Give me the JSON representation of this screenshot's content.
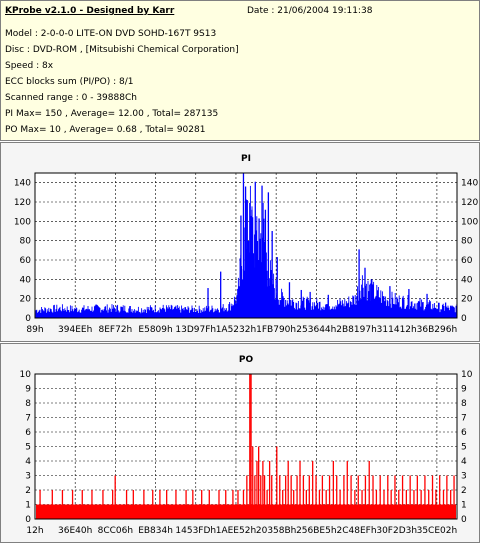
{
  "header": {
    "app_title": "KProbe v2.1.0 - Designed by Karr",
    "date": "Date : 21/06/2004 19:11:38",
    "lines": [
      "Model : 2-0-0-0 LITE-ON DVD SOHD-167T    9S13",
      "Disc : DVD-ROM ,  [Mitsubishi Chemical Corporation]",
      "Speed : 8x",
      "ECC blocks sum (PI/PO) : 8/1",
      "Scanned range : 0 - 39888Ch",
      "PI Max= 150 , Average= 12.00 , Total= 287135",
      "PO Max= 10 , Average= 0.68 , Total= 90281"
    ]
  },
  "chart_data": [
    {
      "type": "bar",
      "title": "PI",
      "color": "#0000ff",
      "ylim": [
        0,
        150
      ],
      "yticks": [
        0,
        20,
        40,
        60,
        80,
        100,
        120,
        140
      ],
      "xtick_labels": [
        "89h",
        "394EEh",
        "8EF72h",
        "E5809h",
        "13D97Fh",
        "1A5232h",
        "1FB790h",
        "253644h",
        "2B8197h",
        "311412h",
        "36B296h"
      ],
      "x_range": [
        0,
        100
      ],
      "grid": true,
      "profile": [
        [
          0,
          8
        ],
        [
          3,
          9
        ],
        [
          6,
          10
        ],
        [
          10,
          9
        ],
        [
          15,
          10
        ],
        [
          20,
          10
        ],
        [
          25,
          9
        ],
        [
          30,
          10
        ],
        [
          35,
          9
        ],
        [
          40,
          9
        ],
        [
          44,
          10
        ],
        [
          46,
          12
        ],
        [
          48,
          22
        ],
        [
          49,
          60
        ],
        [
          50,
          85
        ],
        [
          51,
          100
        ],
        [
          52,
          80
        ],
        [
          53,
          70
        ],
        [
          54,
          95
        ],
        [
          55,
          55
        ],
        [
          56,
          40
        ],
        [
          57,
          30
        ],
        [
          58,
          22
        ],
        [
          60,
          18
        ],
        [
          62,
          16
        ],
        [
          65,
          15
        ],
        [
          68,
          14
        ],
        [
          71,
          14
        ],
        [
          74,
          16
        ],
        [
          76,
          20
        ],
        [
          77,
          35
        ],
        [
          78,
          38
        ],
        [
          79,
          30
        ],
        [
          81,
          25
        ],
        [
          83,
          20
        ],
        [
          86,
          18
        ],
        [
          89,
          16
        ],
        [
          92,
          14
        ],
        [
          95,
          12
        ],
        [
          97,
          10
        ],
        [
          100,
          10
        ]
      ],
      "spikes": [
        [
          41,
          31
        ],
        [
          44,
          48
        ],
        [
          48.8,
          106
        ],
        [
          49.4,
          150
        ],
        [
          49.9,
          136
        ],
        [
          50.3,
          122
        ],
        [
          50.9,
          119
        ],
        [
          51.4,
          112
        ],
        [
          52.2,
          141
        ],
        [
          53.1,
          103
        ],
        [
          53.8,
          137
        ],
        [
          54.6,
          112
        ],
        [
          55.3,
          130
        ],
        [
          56.2,
          90
        ],
        [
          57.4,
          63
        ],
        [
          60.3,
          37
        ],
        [
          63.1,
          29
        ],
        [
          65.2,
          27
        ],
        [
          69.5,
          24
        ],
        [
          76.8,
          71
        ],
        [
          78.2,
          52
        ],
        [
          79.7,
          40
        ],
        [
          84.1,
          33
        ],
        [
          88.6,
          30
        ],
        [
          92.9,
          25
        ],
        [
          97.3,
          16
        ]
      ]
    },
    {
      "type": "bar",
      "title": "PO",
      "color": "#ff0000",
      "ylim": [
        0,
        10
      ],
      "yticks": [
        0,
        1,
        2,
        3,
        4,
        5,
        6,
        7,
        8,
        9,
        10
      ],
      "xtick_labels": [
        "12h",
        "36E40h",
        "8CC06h",
        "EB834h",
        "1453FDh",
        "1AEE52h",
        "20358Bh",
        "256BE5h",
        "2C48EFh",
        "30F2D3h",
        "35CE02h"
      ],
      "x_range": [
        0,
        100
      ],
      "grid": true,
      "baseline": 1,
      "spikes": [
        [
          1.2,
          2
        ],
        [
          2.6,
          1
        ],
        [
          4.1,
          2
        ],
        [
          6.5,
          2
        ],
        [
          8.9,
          2
        ],
        [
          11.2,
          2
        ],
        [
          13.5,
          2
        ],
        [
          16.1,
          2
        ],
        [
          18.4,
          2
        ],
        [
          19.0,
          3
        ],
        [
          21.7,
          2
        ],
        [
          23.3,
          2
        ],
        [
          25.8,
          2
        ],
        [
          27.9,
          2
        ],
        [
          29.6,
          2
        ],
        [
          31.2,
          2
        ],
        [
          33.4,
          2
        ],
        [
          35.8,
          2
        ],
        [
          37.4,
          2
        ],
        [
          39.5,
          2
        ],
        [
          41.3,
          2
        ],
        [
          43.6,
          2
        ],
        [
          45.2,
          2
        ],
        [
          46.9,
          2
        ],
        [
          48.1,
          2
        ],
        [
          49.4,
          2
        ],
        [
          50.2,
          3
        ],
        [
          50.9,
          10
        ],
        [
          51.2,
          10
        ],
        [
          51.6,
          5
        ],
        [
          52.1,
          3
        ],
        [
          52.6,
          4
        ],
        [
          53.0,
          5
        ],
        [
          53.5,
          3
        ],
        [
          54.0,
          4
        ],
        [
          54.4,
          3
        ],
        [
          55.0,
          2
        ],
        [
          55.6,
          4
        ],
        [
          56.1,
          3
        ],
        [
          57.3,
          5
        ],
        [
          58.0,
          3
        ],
        [
          58.7,
          2
        ],
        [
          59.4,
          3
        ],
        [
          60.0,
          4
        ],
        [
          60.7,
          3
        ],
        [
          61.3,
          2
        ],
        [
          62.1,
          3
        ],
        [
          62.8,
          4
        ],
        [
          63.6,
          3
        ],
        [
          64.3,
          2
        ],
        [
          65.0,
          3
        ],
        [
          65.8,
          4
        ],
        [
          66.6,
          3
        ],
        [
          67.4,
          2
        ],
        [
          68.1,
          3
        ],
        [
          69.0,
          2
        ],
        [
          69.8,
          3
        ],
        [
          70.7,
          4
        ],
        [
          71.5,
          3
        ],
        [
          72.3,
          2
        ],
        [
          73.2,
          3
        ],
        [
          74.0,
          4
        ],
        [
          74.9,
          3
        ],
        [
          75.8,
          2
        ],
        [
          76.6,
          3
        ],
        [
          77.5,
          2
        ],
        [
          78.3,
          3
        ],
        [
          79.2,
          4
        ],
        [
          80.1,
          3
        ],
        [
          80.9,
          2
        ],
        [
          81.8,
          3
        ],
        [
          82.7,
          2
        ],
        [
          83.6,
          3
        ],
        [
          84.4,
          2
        ],
        [
          85.3,
          3
        ],
        [
          86.2,
          2
        ],
        [
          87.1,
          3
        ],
        [
          88.0,
          2
        ],
        [
          88.9,
          3
        ],
        [
          89.8,
          2
        ],
        [
          90.6,
          3
        ],
        [
          91.5,
          2
        ],
        [
          92.4,
          3
        ],
        [
          93.3,
          2
        ],
        [
          94.2,
          3
        ],
        [
          95.0,
          2
        ],
        [
          95.9,
          3
        ],
        [
          96.8,
          2
        ],
        [
          97.6,
          3
        ],
        [
          98.5,
          2
        ],
        [
          99.3,
          3
        ]
      ]
    }
  ]
}
